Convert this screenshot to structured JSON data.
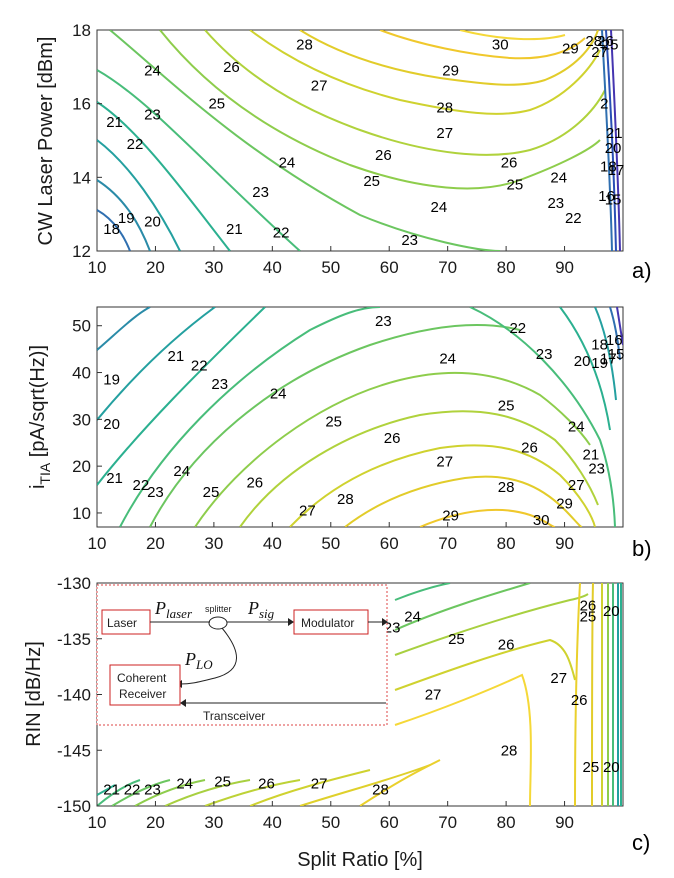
{
  "chart_data": [
    {
      "type": "contour",
      "panel_label": "a)",
      "xlabel": "",
      "ylabel": "CW Laser Power [dBm]",
      "xlim": [
        10,
        100
      ],
      "ylim": [
        12,
        18
      ],
      "xticks": [
        "10",
        "20",
        "30",
        "40",
        "50",
        "60",
        "70",
        "80",
        "90"
      ],
      "yticks": [
        "12",
        "14",
        "16",
        "18"
      ],
      "contour_labels": [
        {
          "text": "18",
          "x": 12.5,
          "y": 12.6
        },
        {
          "text": "19",
          "x": 15.0,
          "y": 12.9
        },
        {
          "text": "20",
          "x": 19.5,
          "y": 12.8
        },
        {
          "text": "21",
          "x": 13.0,
          "y": 15.5
        },
        {
          "text": "22",
          "x": 16.5,
          "y": 14.9
        },
        {
          "text": "23",
          "x": 19.5,
          "y": 15.7
        },
        {
          "text": "24",
          "x": 19.5,
          "y": 16.9
        },
        {
          "text": "25",
          "x": 30.5,
          "y": 16.0
        },
        {
          "text": "26",
          "x": 33.0,
          "y": 17.0
        },
        {
          "text": "27",
          "x": 48.0,
          "y": 16.5
        },
        {
          "text": "28",
          "x": 45.5,
          "y": 17.6
        },
        {
          "text": "29",
          "x": 70.5,
          "y": 16.9
        },
        {
          "text": "30",
          "x": 79.0,
          "y": 17.6
        },
        {
          "text": "28",
          "x": 69.5,
          "y": 15.9
        },
        {
          "text": "27",
          "x": 69.5,
          "y": 15.2
        },
        {
          "text": "26",
          "x": 59.0,
          "y": 14.6
        },
        {
          "text": "25",
          "x": 57.0,
          "y": 13.9
        },
        {
          "text": "24",
          "x": 42.5,
          "y": 14.4
        },
        {
          "text": "23",
          "x": 38.0,
          "y": 13.6
        },
        {
          "text": "22",
          "x": 41.5,
          "y": 12.5
        },
        {
          "text": "21",
          "x": 33.5,
          "y": 12.6
        },
        {
          "text": "24",
          "x": 68.5,
          "y": 13.2
        },
        {
          "text": "23",
          "x": 63.5,
          "y": 12.3
        },
        {
          "text": "26",
          "x": 80.5,
          "y": 14.4
        },
        {
          "text": "25",
          "x": 81.5,
          "y": 13.8
        },
        {
          "text": "24",
          "x": 89.0,
          "y": 14.0
        },
        {
          "text": "23",
          "x": 88.5,
          "y": 13.3
        },
        {
          "text": "22",
          "x": 91.5,
          "y": 12.9
        },
        {
          "text": "29",
          "x": 91.0,
          "y": 17.5
        },
        {
          "text": "28",
          "x": 95.0,
          "y": 17.7
        },
        {
          "text": "27",
          "x": 96.0,
          "y": 17.4
        },
        {
          "text": "26",
          "x": 97.0,
          "y": 17.7
        },
        {
          "text": "25",
          "x": 97.8,
          "y": 17.6
        },
        {
          "text": "2",
          "x": 96.8,
          "y": 16.0
        },
        {
          "text": "21",
          "x": 98.5,
          "y": 15.2
        },
        {
          "text": "20",
          "x": 98.3,
          "y": 14.8
        },
        {
          "text": "18",
          "x": 97.5,
          "y": 14.3
        },
        {
          "text": "17",
          "x": 98.8,
          "y": 14.2
        },
        {
          "text": "16",
          "x": 97.2,
          "y": 13.5
        },
        {
          "text": "15",
          "x": 98.3,
          "y": 13.4
        }
      ]
    },
    {
      "type": "contour",
      "panel_label": "b)",
      "xlabel": "",
      "ylabel_main": "i",
      "ylabel_sub": "TIA",
      "ylabel_rest": " [pA/sqrt(Hz)]",
      "xlim": [
        10,
        100
      ],
      "ylim": [
        7,
        54
      ],
      "xticks": [
        "10",
        "20",
        "30",
        "40",
        "50",
        "60",
        "70",
        "80",
        "90"
      ],
      "yticks": [
        "10",
        "20",
        "30",
        "40",
        "50"
      ],
      "contour_labels": [
        {
          "text": "19",
          "x": 12.5,
          "y": 38.5
        },
        {
          "text": "20",
          "x": 12.5,
          "y": 29.0
        },
        {
          "text": "21",
          "x": 13.0,
          "y": 17.5
        },
        {
          "text": "22",
          "x": 17.5,
          "y": 16.0
        },
        {
          "text": "23",
          "x": 20.0,
          "y": 14.5
        },
        {
          "text": "21",
          "x": 23.5,
          "y": 43.5
        },
        {
          "text": "22",
          "x": 27.5,
          "y": 41.5
        },
        {
          "text": "23",
          "x": 31.0,
          "y": 37.5
        },
        {
          "text": "24",
          "x": 24.5,
          "y": 19.0
        },
        {
          "text": "25",
          "x": 29.5,
          "y": 14.5
        },
        {
          "text": "26",
          "x": 37.0,
          "y": 16.5
        },
        {
          "text": "27",
          "x": 46.0,
          "y": 10.5
        },
        {
          "text": "28",
          "x": 52.5,
          "y": 13.0
        },
        {
          "text": "24",
          "x": 41.0,
          "y": 35.5
        },
        {
          "text": "25",
          "x": 50.5,
          "y": 29.5
        },
        {
          "text": "26",
          "x": 60.5,
          "y": 26.0
        },
        {
          "text": "27",
          "x": 69.5,
          "y": 21.0
        },
        {
          "text": "28",
          "x": 80.0,
          "y": 15.5
        },
        {
          "text": "29",
          "x": 70.5,
          "y": 9.5
        },
        {
          "text": "30",
          "x": 86.0,
          "y": 8.5
        },
        {
          "text": "29",
          "x": 90.0,
          "y": 12.0
        },
        {
          "text": "23",
          "x": 59.0,
          "y": 51.0
        },
        {
          "text": "24",
          "x": 70.0,
          "y": 43.0
        },
        {
          "text": "25",
          "x": 80.0,
          "y": 33.0
        },
        {
          "text": "26",
          "x": 84.0,
          "y": 24.0
        },
        {
          "text": "22",
          "x": 82.0,
          "y": 49.5
        },
        {
          "text": "23",
          "x": 86.5,
          "y": 44.0
        },
        {
          "text": "24",
          "x": 92.0,
          "y": 28.5
        },
        {
          "text": "27",
          "x": 92.0,
          "y": 16.0
        },
        {
          "text": "21",
          "x": 94.5,
          "y": 22.5
        },
        {
          "text": "23",
          "x": 95.5,
          "y": 19.5
        },
        {
          "text": "20",
          "x": 93.0,
          "y": 42.5
        },
        {
          "text": "19",
          "x": 96.0,
          "y": 42.0
        },
        {
          "text": "18",
          "x": 96.0,
          "y": 46.0
        },
        {
          "text": "17",
          "x": 97.5,
          "y": 43.0
        },
        {
          "text": "16",
          "x": 98.5,
          "y": 47.0
        },
        {
          "text": "15",
          "x": 98.8,
          "y": 44.0
        }
      ]
    },
    {
      "type": "contour",
      "panel_label": "c)",
      "xlabel": "Split Ratio [%]",
      "ylabel": "RIN [dB/Hz]",
      "xlim": [
        10,
        100
      ],
      "ylim": [
        -150,
        -130
      ],
      "xticks": [
        "10",
        "20",
        "30",
        "40",
        "50",
        "60",
        "70",
        "80",
        "90"
      ],
      "yticks": [
        "-130",
        "-135",
        "-140",
        "-145",
        "-150"
      ],
      "contour_labels": [
        {
          "text": "21",
          "x": 12.5,
          "y": -148.5
        },
        {
          "text": "22",
          "x": 16.0,
          "y": -148.5
        },
        {
          "text": "23",
          "x": 19.5,
          "y": -148.5
        },
        {
          "text": "24",
          "x": 25.0,
          "y": -148.0
        },
        {
          "text": "25",
          "x": 31.5,
          "y": -147.8
        },
        {
          "text": "26",
          "x": 39.0,
          "y": -148.0
        },
        {
          "text": "27",
          "x": 48.0,
          "y": -148.0
        },
        {
          "text": "28",
          "x": 58.5,
          "y": -148.5
        },
        {
          "text": "23",
          "x": 60.5,
          "y": -134.0
        },
        {
          "text": "24",
          "x": 64.0,
          "y": -133.0
        },
        {
          "text": "25",
          "x": 71.5,
          "y": -135.0
        },
        {
          "text": "26",
          "x": 80.0,
          "y": -135.5
        },
        {
          "text": "27",
          "x": 67.5,
          "y": -140.0
        },
        {
          "text": "28",
          "x": 80.5,
          "y": -145.0
        },
        {
          "text": "27",
          "x": 89.0,
          "y": -138.5
        },
        {
          "text": "26",
          "x": 92.5,
          "y": -140.5
        },
        {
          "text": "25",
          "x": 94.0,
          "y": -133.0
        },
        {
          "text": "26",
          "x": 94.0,
          "y": -132.0
        },
        {
          "text": "20",
          "x": 98.0,
          "y": -132.5
        },
        {
          "text": "25",
          "x": 94.5,
          "y": -146.5
        },
        {
          "text": "20",
          "x": 98.0,
          "y": -146.5
        }
      ],
      "inset": {
        "laser": "Laser",
        "p_laser_main": "P",
        "p_laser_sub": "laser",
        "splitter": "splitter",
        "p_sig_main": "P",
        "p_sig_sub": "sig",
        "modulator": "Modulator",
        "p_lo_main": "P",
        "p_lo_sub": "LO",
        "coherent_1": "Coherent",
        "coherent_2": "Receiver",
        "transceiver": "Transceiver"
      }
    }
  ]
}
